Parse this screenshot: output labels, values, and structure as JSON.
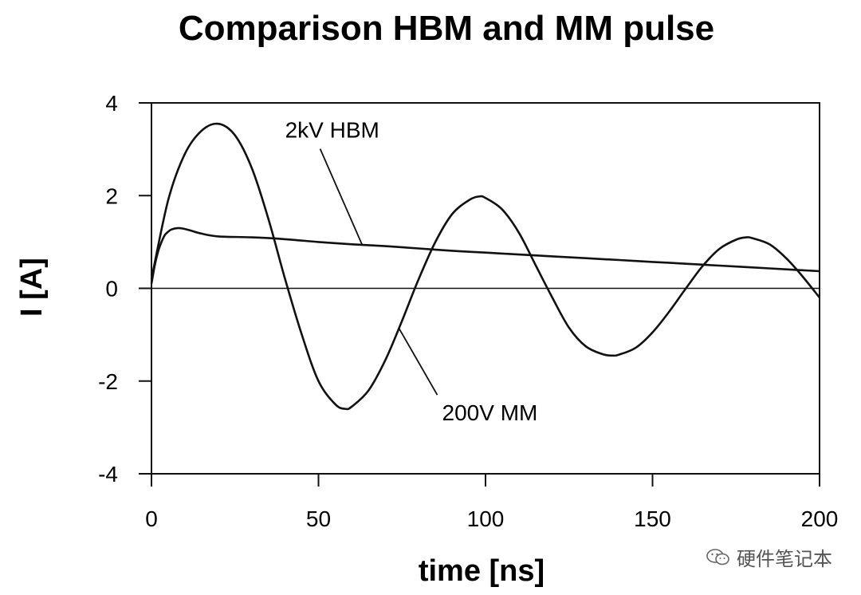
{
  "chart_data": {
    "type": "line",
    "title": "Comparison HBM and MM pulse",
    "xlabel": "time [ns]",
    "ylabel": "I [A]",
    "xlim": [
      0,
      200
    ],
    "ylim": [
      -4,
      4
    ],
    "xticks": [
      0,
      50,
      100,
      150,
      200
    ],
    "yticks": [
      4,
      2,
      0,
      -2,
      -4
    ],
    "xtick_labels": [
      "0",
      "50",
      "100",
      "150",
      "200"
    ],
    "ytick_labels": [
      "4",
      "2",
      "0",
      "-2",
      "-4"
    ],
    "grid": false,
    "series": [
      {
        "name": "2kV HBM",
        "x": [
          0,
          1,
          2,
          3,
          4,
          5,
          6,
          8,
          10,
          12,
          15,
          20,
          30,
          40,
          50,
          60,
          70,
          80,
          90,
          100,
          110,
          120,
          130,
          140,
          150,
          160,
          170,
          180,
          190,
          200
        ],
        "y": [
          0.1,
          0.5,
          0.8,
          1.0,
          1.15,
          1.22,
          1.27,
          1.3,
          1.28,
          1.24,
          1.18,
          1.12,
          1.1,
          1.06,
          1.0,
          0.95,
          0.91,
          0.86,
          0.81,
          0.77,
          0.73,
          0.69,
          0.65,
          0.61,
          0.57,
          0.53,
          0.49,
          0.45,
          0.41,
          0.37
        ]
      },
      {
        "name": "200V MM",
        "x": [
          0,
          5,
          10,
          15,
          20,
          25,
          30,
          35,
          40,
          45,
          50,
          55,
          58,
          60,
          65,
          70,
          75,
          80,
          85,
          90,
          95,
          98,
          100,
          105,
          110,
          115,
          120,
          125,
          130,
          135,
          138,
          140,
          145,
          150,
          155,
          160,
          165,
          170,
          175,
          178,
          180,
          185,
          190,
          195,
          200
        ],
        "y": [
          0.2,
          1.9,
          2.9,
          3.4,
          3.55,
          3.3,
          2.6,
          1.5,
          0.2,
          -1.0,
          -2.0,
          -2.5,
          -2.6,
          -2.55,
          -2.2,
          -1.55,
          -0.7,
          0.2,
          1.0,
          1.6,
          1.9,
          1.98,
          1.95,
          1.7,
          1.2,
          0.5,
          -0.2,
          -0.85,
          -1.25,
          -1.42,
          -1.45,
          -1.43,
          -1.28,
          -0.95,
          -0.5,
          0.0,
          0.48,
          0.85,
          1.05,
          1.1,
          1.08,
          0.95,
          0.65,
          0.25,
          -0.2
        ]
      }
    ],
    "annotations": [
      {
        "text": "2kV HBM",
        "x": 63,
        "y": 0.95,
        "text_x": 40,
        "text_y": 3.25
      },
      {
        "text": "200V MM",
        "x": 74,
        "y": -0.85,
        "text_x": 87,
        "text_y": -2.85
      }
    ]
  },
  "watermark": {
    "icon": "wechat-icon",
    "text": "硬件笔记本"
  }
}
